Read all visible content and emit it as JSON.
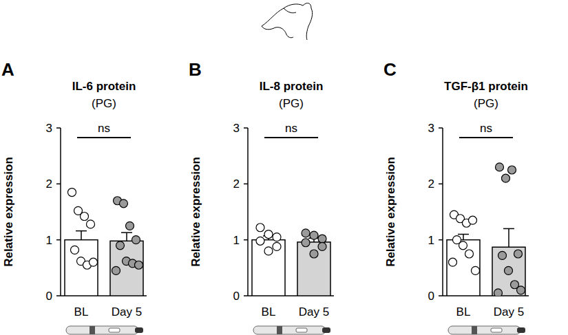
{
  "chart_data": [
    {
      "type": "bar",
      "panel": "A",
      "title": "IL-6 protein",
      "subtitle": "(PG)",
      "y_label": "Relative expression",
      "categories": [
        "BL",
        "Day 5"
      ],
      "values": [
        1.0,
        0.98
      ],
      "errors": [
        0.16,
        0.15
      ],
      "points": [
        [
          1.85,
          1.52,
          1.42,
          1.28,
          0.82,
          0.62,
          0.55,
          0.6
        ],
        [
          1.7,
          1.65,
          1.25,
          1.0,
          0.9,
          0.62,
          0.58,
          0.55,
          0.45
        ]
      ],
      "colors": [
        "#ffffff",
        "#d4d4d4"
      ],
      "annotation": "ns",
      "ylim": [
        0,
        3
      ],
      "yticks": [
        0,
        1,
        2,
        3
      ]
    },
    {
      "type": "bar",
      "panel": "B",
      "title": "IL-8 protein",
      "subtitle": "(PG)",
      "y_label": "Relative expression",
      "categories": [
        "BL",
        "Day 5"
      ],
      "values": [
        1.0,
        0.96
      ],
      "errors": [
        0.07,
        0.07
      ],
      "points": [
        [
          1.22,
          1.1,
          1.05,
          0.98,
          0.8,
          0.88
        ],
        [
          1.12,
          1.08,
          1.02,
          0.95,
          0.75,
          0.88
        ]
      ],
      "colors": [
        "#ffffff",
        "#d4d4d4"
      ],
      "annotation": "ns",
      "ylim": [
        0,
        3
      ],
      "yticks": [
        0,
        1,
        2,
        3
      ]
    },
    {
      "type": "bar",
      "panel": "C",
      "title": "TGF-β1 protein",
      "subtitle": "(PG)",
      "y_label": "Relative expression",
      "categories": [
        "BL",
        "Day 5"
      ],
      "values": [
        1.0,
        0.87
      ],
      "errors": [
        0.1,
        0.33
      ],
      "points": [
        [
          1.45,
          1.38,
          1.3,
          1.35,
          1.0,
          0.9,
          0.75,
          0.45,
          0.6
        ],
        [
          2.3,
          2.1,
          2.25,
          0.75,
          0.72,
          0.45,
          0.2,
          0.1,
          0.05
        ]
      ],
      "colors": [
        "#ffffff",
        "#d4d4d4"
      ],
      "annotation": "ns",
      "ylim": [
        0,
        3
      ],
      "yticks": [
        0,
        1,
        2,
        3
      ]
    }
  ]
}
